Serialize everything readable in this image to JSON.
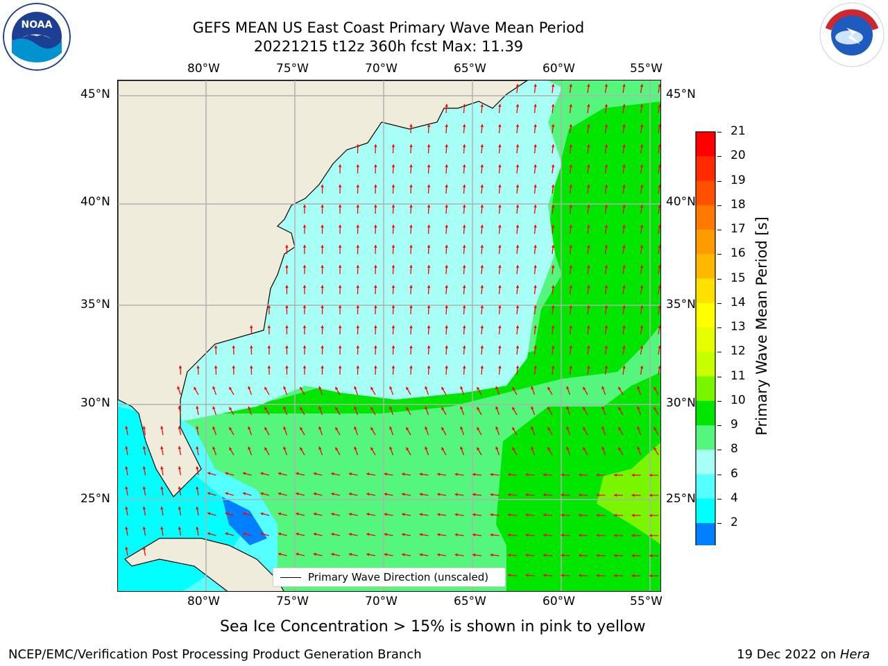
{
  "title": {
    "line1": "GEFS MEAN US East Coast Primary Wave Mean Period",
    "line2": "20221215 t12z 360h fcst   Max: 11.39"
  },
  "axes": {
    "lon_labels": [
      "80°W",
      "75°W",
      "70°W",
      "65°W",
      "60°W",
      "55°W"
    ],
    "lat_labels": [
      "45°N",
      "40°N",
      "35°N",
      "30°N",
      "25°N"
    ]
  },
  "legend": {
    "label": "Primary Wave Direction (unscaled)"
  },
  "colorbar": {
    "label": "Primary Wave Mean Period [s]",
    "ticks": [
      "21",
      "20",
      "19",
      "18",
      "17",
      "16",
      "15",
      "14",
      "13",
      "12",
      "11",
      "10",
      "9",
      "8",
      "6",
      "4",
      "2"
    ],
    "colors": [
      "#ff0000",
      "#ff2a00",
      "#ff5000",
      "#ff7800",
      "#ff9a00",
      "#ffb800",
      "#ffe000",
      "#ffff00",
      "#e6ff00",
      "#c8ff00",
      "#7af500",
      "#00e600",
      "#55f67e",
      "#a8fff6",
      "#55ffff",
      "#00ffff",
      "#0080ff"
    ],
    "extend_color": "#0000ff"
  },
  "note": "Sea Ice Concentration > 15% is shown in pink to yellow",
  "footer": {
    "left": "NCEP/EMC/Verification Post Processing Product Generation Branch",
    "right_date": "19 Dec 2022 on ",
    "right_host": "Hera"
  },
  "logos": {
    "left": "NOAA",
    "right": "NATIONAL WEATHER SERVICE"
  },
  "map_colors": {
    "land": "#efecdc",
    "grid": "#b0b0b0",
    "arrow": "#ff0000",
    "period_8_9": "#a8fff6",
    "period_9_10": "#55f67e",
    "period_10_11": "#00e600",
    "period_11_12": "#7af500",
    "period_6_8": "#55ffff",
    "period_4_6": "#00ffff",
    "period_2_4": "#0080ff"
  }
}
